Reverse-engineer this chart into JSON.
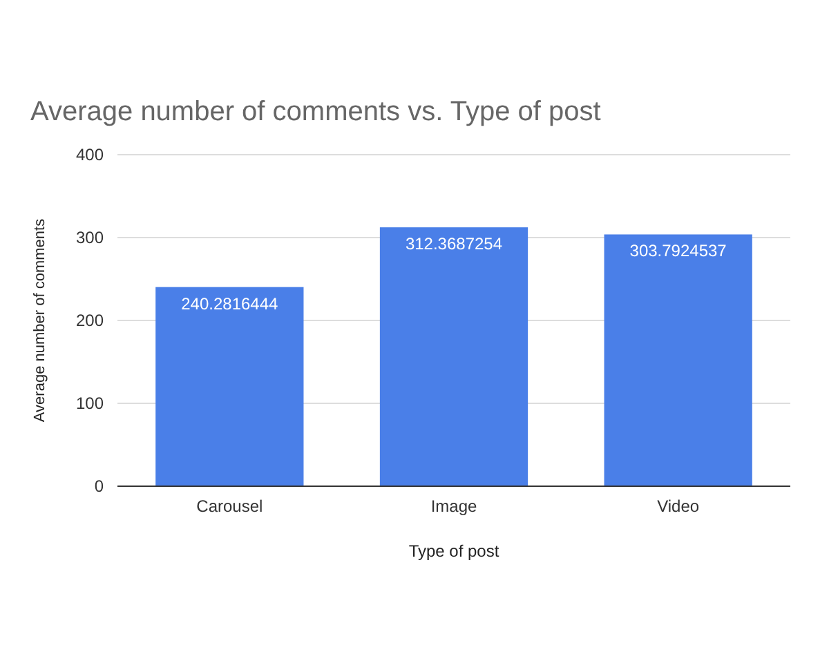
{
  "chart_data": {
    "type": "bar",
    "title": "Average number of comments vs. Type of post",
    "xlabel": "Type of post",
    "ylabel": "Average number of comments",
    "categories": [
      "Carousel",
      "Image",
      "Video"
    ],
    "values": [
      240.2816444,
      312.3687254,
      303.7924537
    ],
    "color": "#4a7fe8",
    "ylim": [
      0,
      400
    ],
    "yticks": [
      0,
      100,
      200,
      300,
      400
    ],
    "grid": "y",
    "data_labels": true
  }
}
